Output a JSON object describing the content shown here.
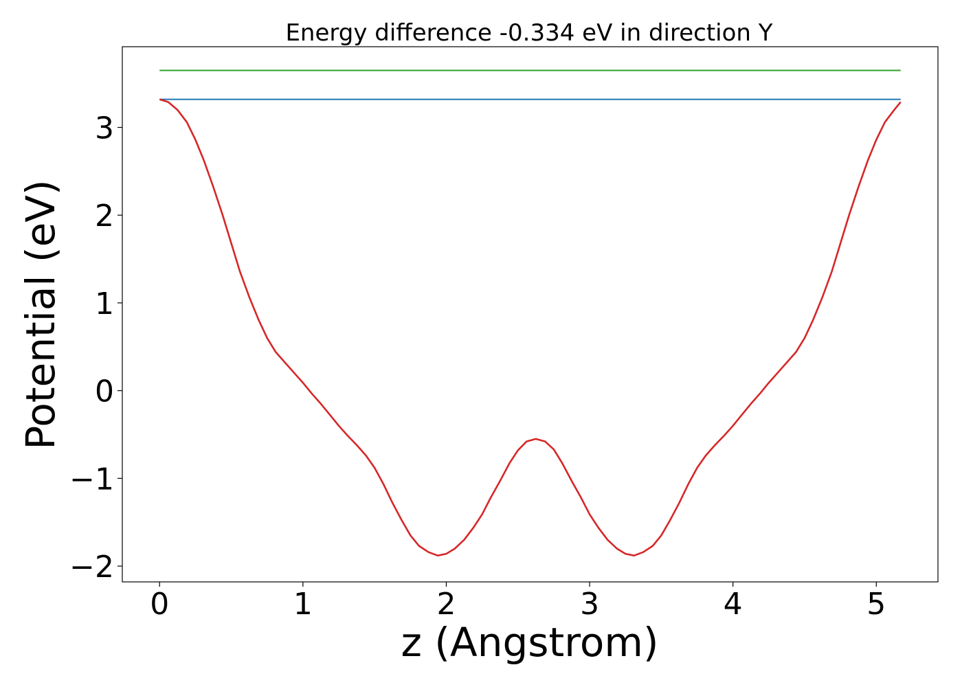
{
  "chart_data": {
    "type": "line",
    "title": "Energy difference -0.334 eV in direction Y",
    "xlabel": "z (Angstrom)",
    "ylabel": "Potential (eV)",
    "xlim": [
      -0.26,
      5.43
    ],
    "ylim": [
      -2.18,
      3.92
    ],
    "xticks": [
      0,
      1,
      2,
      3,
      4,
      5
    ],
    "yticks": [
      -2,
      -1,
      0,
      1,
      2,
      3
    ],
    "xtick_labels": [
      "0",
      "1",
      "2",
      "3",
      "4",
      "5"
    ],
    "ytick_labels": [
      "−2",
      "−1",
      "0",
      "1",
      "2",
      "3"
    ],
    "grid": false,
    "series": [
      {
        "color": "#d62728",
        "x": [
          0,
          0.06,
          0.125,
          0.19,
          0.25,
          0.31,
          0.375,
          0.44,
          0.5,
          0.56,
          0.625,
          0.69,
          0.75,
          0.81,
          0.875,
          0.94,
          1.0,
          1.06,
          1.125,
          1.19,
          1.25,
          1.31,
          1.375,
          1.44,
          1.5,
          1.56,
          1.625,
          1.69,
          1.75,
          1.81,
          1.875,
          1.94,
          2.0,
          2.06,
          2.125,
          2.19,
          2.25,
          2.31,
          2.375,
          2.44,
          2.5,
          2.56,
          2.625,
          2.69,
          2.75,
          2.81,
          2.875,
          2.94,
          3.0,
          3.06,
          3.125,
          3.19,
          3.25,
          3.31,
          3.375,
          3.44,
          3.5,
          3.56,
          3.625,
          3.69,
          3.75,
          3.81,
          3.875,
          3.94,
          4.0,
          4.06,
          4.125,
          4.19,
          4.25,
          4.31,
          4.375,
          4.44,
          4.5,
          4.56,
          4.625,
          4.69,
          4.75,
          4.81,
          4.875,
          4.94,
          5.0,
          5.06,
          5.125,
          5.17
        ],
        "y": [
          3.32,
          3.29,
          3.2,
          3.06,
          2.86,
          2.62,
          2.32,
          2.0,
          1.68,
          1.36,
          1.07,
          0.81,
          0.6,
          0.44,
          0.32,
          0.2,
          0.09,
          -0.03,
          -0.15,
          -0.28,
          -0.4,
          -0.51,
          -0.62,
          -0.74,
          -0.88,
          -1.06,
          -1.28,
          -1.48,
          -1.65,
          -1.77,
          -1.84,
          -1.88,
          -1.86,
          -1.8,
          -1.7,
          -1.56,
          -1.41,
          -1.22,
          -1.03,
          -0.83,
          -0.68,
          -0.58,
          -0.55,
          -0.58,
          -0.67,
          -0.83,
          -1.03,
          -1.22,
          -1.41,
          -1.56,
          -1.7,
          -1.8,
          -1.86,
          -1.88,
          -1.84,
          -1.77,
          -1.65,
          -1.48,
          -1.28,
          -1.06,
          -0.88,
          -0.74,
          -0.62,
          -0.51,
          -0.4,
          -0.28,
          -0.15,
          -0.03,
          0.09,
          0.2,
          0.32,
          0.44,
          0.6,
          0.81,
          1.07,
          1.36,
          1.68,
          2.0,
          2.32,
          2.62,
          2.86,
          3.06,
          3.2,
          3.29
        ]
      },
      {
        "color": "#1f77b4",
        "x": [
          0,
          5.17
        ],
        "y": [
          3.32,
          3.32
        ]
      },
      {
        "color": "#2ca02c",
        "x": [
          0,
          5.17
        ],
        "y": [
          3.65,
          3.65
        ]
      }
    ]
  }
}
